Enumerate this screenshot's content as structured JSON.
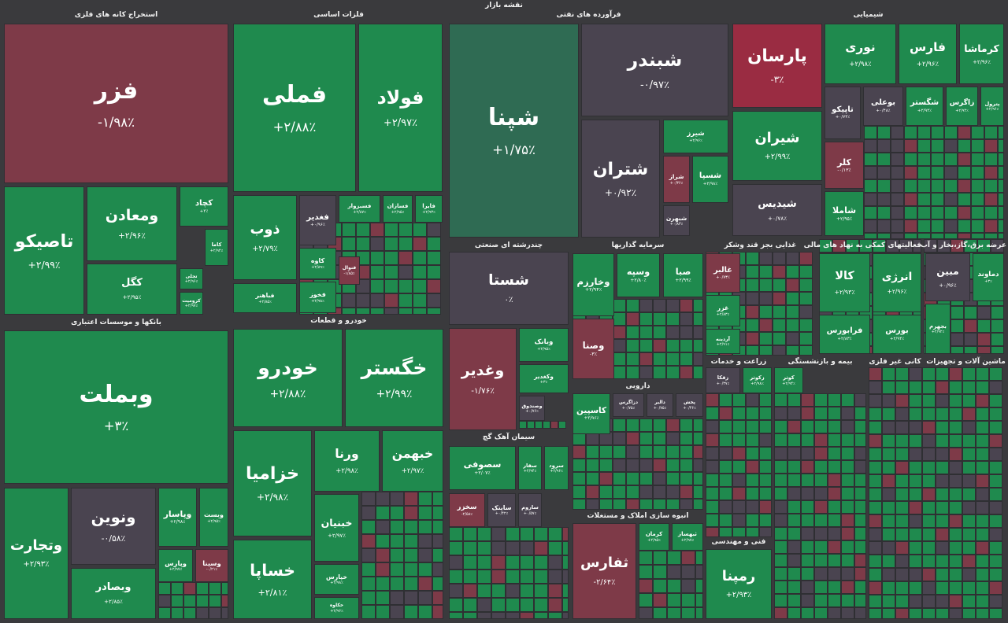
{
  "title": "نقشه بازار",
  "sectors": [
    {
      "title": "استخراج کانه های فلزی",
      "tiles": [
        {
          "name": "فزر",
          "change": "-۱/۹۸٪"
        },
        {
          "name": "تاصیکو",
          "change": "+۲/۹۹٪"
        },
        {
          "name": "ومعادن",
          "change": "+۲/۹۶٪"
        },
        {
          "name": "کچاد",
          "change": "+۳٪"
        },
        {
          "name": "کگل",
          "change": "+۲/۹۵٪"
        },
        {
          "name": "کاما",
          "change": "+۲/۹۴٪"
        },
        {
          "name": "تجلی",
          "change": "+۲/۹۶٪"
        },
        {
          "name": "کرومیت",
          "change": "+۲/۹۷٪"
        }
      ]
    },
    {
      "title": "فلزات اساسی",
      "tiles": [
        {
          "name": "فملی",
          "change": "+۲/۸۸٪"
        },
        {
          "name": "فولاد",
          "change": "+۲/۹۷٪"
        },
        {
          "name": "ذوب",
          "change": "+۲/۷۹٪"
        },
        {
          "name": "فباهنر",
          "change": "+۲/۸۵٪"
        },
        {
          "name": "فغدیر",
          "change": "+۰/۹۶٪"
        },
        {
          "name": "کاوه",
          "change": "+۲/۸۹٪"
        },
        {
          "name": "فخوز",
          "change": "+۲/۹۸٪"
        },
        {
          "name": "فسبزوار",
          "change": "+۲/۸۷٪"
        },
        {
          "name": "فسازان",
          "change": "+۲/۹۵٪"
        },
        {
          "name": "فایرا",
          "change": "+۲/۹۳٪"
        },
        {
          "name": "فنوال",
          "change": "-۱/۸۵٪"
        }
      ]
    },
    {
      "title": "فرآورده های نفتی",
      "tiles": [
        {
          "name": "شپنا",
          "change": "+۱/۷۵٪"
        },
        {
          "name": "شبندر",
          "change": "-۰/۹۷٪"
        },
        {
          "name": "شتران",
          "change": "+۰/۹۲٪"
        },
        {
          "name": "شیرز",
          "change": "+۲/۹۶٪"
        },
        {
          "name": "شراز",
          "change": "+۰/۳۶٪"
        },
        {
          "name": "شسپا",
          "change": "+۲/۹۸٪"
        },
        {
          "name": "شبهرن",
          "change": "+۰/۸۳٪"
        }
      ]
    },
    {
      "title": "شیمیایی",
      "tiles": [
        {
          "name": "پارسان",
          "change": "-۳٪"
        },
        {
          "name": "شیران",
          "change": "+۲/۹۹٪"
        },
        {
          "name": "شیدیس",
          "change": "+۰/۷۸٪"
        },
        {
          "name": "نوری",
          "change": "+۲/۹۸٪"
        },
        {
          "name": "فارس",
          "change": "+۲/۹۶٪"
        },
        {
          "name": "کرماشا",
          "change": "+۲/۹۶٪"
        },
        {
          "name": "تاپیکو",
          "change": "+۰/۷۴٪"
        },
        {
          "name": "بوعلی",
          "change": "+۰/۴۸٪"
        },
        {
          "name": "شگستر",
          "change": "+۲/۹۴٪"
        },
        {
          "name": "زاگرس",
          "change": "+۲/۹۴٪"
        },
        {
          "name": "پترول",
          "change": "+۲/۹۶٪"
        },
        {
          "name": "کلر",
          "change": "-۰/۱۳٪"
        },
        {
          "name": "شاملا",
          "change": "+۲/۹۵٪"
        }
      ]
    },
    {
      "title": "بانکها و موسسات اعتباری",
      "tiles": [
        {
          "name": "وبملت",
          "change": "+۳٪"
        },
        {
          "name": "ونوین",
          "change": "-۰/۵۸٪"
        },
        {
          "name": "وتجارت",
          "change": "+۲/۹۳٪"
        },
        {
          "name": "وبصادر",
          "change": "+۲/۸۵٪"
        },
        {
          "name": "وپاسار",
          "change": "+۲/۹۸٪"
        },
        {
          "name": "وبست",
          "change": "+۲/۹۵٪"
        },
        {
          "name": "وپارس",
          "change": "+۲/۹۷٪"
        },
        {
          "name": "وسینا",
          "change": "-۰/۲۱٪"
        }
      ]
    },
    {
      "title": "خودرو و قطعات",
      "tiles": [
        {
          "name": "خودرو",
          "change": "+۲/۸۸٪"
        },
        {
          "name": "خگستر",
          "change": "+۲/۹۹٪"
        },
        {
          "name": "خزامیا",
          "change": "+۲/۹۸٪"
        },
        {
          "name": "خساپا",
          "change": "+۲/۸۱٪"
        },
        {
          "name": "ورنا",
          "change": "+۲/۹۸٪"
        },
        {
          "name": "خبهمن",
          "change": "+۲/۹۷٪"
        },
        {
          "name": "خبنیان",
          "change": "+۲/۹۷٪"
        },
        {
          "name": "خپارس",
          "change": "+۲/۹۸٪"
        },
        {
          "name": "خکاوه",
          "change": "+۲/۹۶٪"
        }
      ]
    },
    {
      "title": "چندرشته ای صنعتی",
      "tiles": [
        {
          "name": "شستا",
          "change": "۰٪"
        },
        {
          "name": "وغدیر",
          "change": "-۱/۷۶٪"
        },
        {
          "name": "وبانک",
          "change": "+۲/۹۵٪"
        },
        {
          "name": "وکغدیر",
          "change": "+۳٪"
        },
        {
          "name": "وصندوق",
          "change": "+۰/۷۶٪"
        }
      ]
    },
    {
      "title": "سیمان آهک گچ",
      "tiles": [
        {
          "name": "سصوفی",
          "change": "+۲/۰۷٪"
        },
        {
          "name": "سفار",
          "change": "+۲/۹۴٪"
        },
        {
          "name": "سرود",
          "change": "+۲/۹۶٪"
        },
        {
          "name": "سخزر",
          "change": "-۲/۵۸٪"
        },
        {
          "name": "ساینک",
          "change": "+۰/۴۲٪"
        },
        {
          "name": "ساروم",
          "change": "+۰/۵۷٪"
        }
      ]
    },
    {
      "title": "سرمایه گذاریها",
      "tiles": [
        {
          "name": "وخارزم",
          "change": "+۲/۹۴٪"
        },
        {
          "name": "وسپه",
          "change": "+۲/۸۰٪"
        },
        {
          "name": "صبا",
          "change": "+۲/۹۹٪"
        },
        {
          "name": "وصنا",
          "change": "-۳٪"
        }
      ]
    },
    {
      "title": "دارویی",
      "tiles": [
        {
          "name": "کاسپین",
          "change": "+۲/۹۶٪"
        },
        {
          "name": "دزاگرس",
          "change": "+۰/۷۵٪"
        },
        {
          "name": "دالبر",
          "change": "+۰/۷۵٪"
        },
        {
          "name": "پخش",
          "change": "+۰/۴۶٪"
        }
      ]
    },
    {
      "title": "انبوه سازی املاک و مستغلات",
      "tiles": [
        {
          "name": "ثفارس",
          "change": "-۲/۶۴٪"
        },
        {
          "name": "کرمان",
          "change": "+۲/۹۵٪"
        },
        {
          "name": "ثبهساز",
          "change": "+۲/۹۷٪"
        }
      ]
    },
    {
      "title": "غذایی بجز قند وشکر",
      "tiles": [
        {
          "name": "غالبر",
          "change": "+۰/۷۳٪"
        },
        {
          "name": "غزر",
          "change": "+۲/۸۳٪"
        },
        {
          "name": "آردینه",
          "change": "+۲/۹۱٪"
        }
      ]
    },
    {
      "title": "فعالیتهای کمکی به نهاد های مالی",
      "tiles": [
        {
          "name": "کالا",
          "change": "+۲/۹۳٪"
        },
        {
          "name": "انرژی",
          "change": "+۲/۹۶٪"
        },
        {
          "name": "فرابورس",
          "change": "+۲/۸۳٪"
        },
        {
          "name": "بورس",
          "change": "+۲/۹۴٪"
        }
      ]
    },
    {
      "title": "عرضه برق،گاز،بخار و آب",
      "tiles": [
        {
          "name": "مبین",
          "change": "+۰/۹۶٪"
        },
        {
          "name": "دماوند",
          "change": "+۳٪"
        },
        {
          "name": "بجهرم",
          "change": "+۲/۹۲٪"
        }
      ]
    },
    {
      "title": "زراعت و خدمات",
      "tiles": [
        {
          "name": "زفکا",
          "change": "+۰/۳۷٪"
        },
        {
          "name": "زکوثر",
          "change": "+۲/۹۸٪"
        }
      ]
    },
    {
      "title": "بیمه و بازنشستگی",
      "tiles": [
        {
          "name": "کوثر",
          "change": "+۲/۹۴٪"
        }
      ]
    },
    {
      "title": "کانی غیر فلزی"
    },
    {
      "title": "ماشین آلات و تجهیزات"
    },
    {
      "title": "فنی و مهندسی",
      "tiles": [
        {
          "name": "رمپنا",
          "change": "+۲/۹۳٪"
        }
      ]
    }
  ]
}
